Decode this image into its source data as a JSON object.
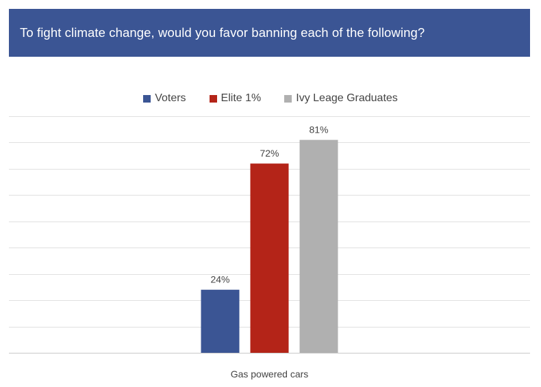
{
  "header": {
    "title": "To fight climate change, would you favor banning each of the following?",
    "background_color": "#3b5594"
  },
  "chart_data": {
    "type": "bar",
    "title": "To fight climate change, would you favor banning each of the following?",
    "categories": [
      "Gas powered cars"
    ],
    "series": [
      {
        "name": "Voters",
        "values": [
          24
        ],
        "labels": [
          "24%"
        ],
        "color": "#3b5594"
      },
      {
        "name": "Elite 1%",
        "values": [
          72
        ],
        "labels": [
          "72%"
        ],
        "color": "#b42418"
      },
      {
        "name": "Ivy Leage Graduates",
        "values": [
          81
        ],
        "labels": [
          "81%"
        ],
        "color": "#b0b0b0"
      }
    ],
    "ylim": [
      0,
      90
    ],
    "grid": true,
    "legend_position": "top-center",
    "xlabel": "",
    "ylabel": ""
  }
}
